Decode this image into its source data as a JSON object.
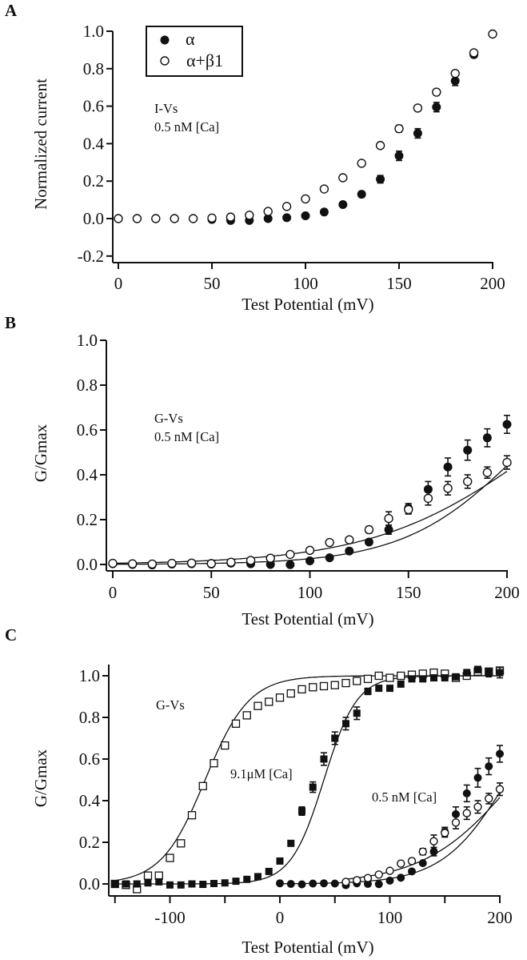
{
  "figure": {
    "panels": [
      "A",
      "B",
      "C"
    ]
  },
  "chart_data": [
    {
      "panel": "A",
      "type": "scatter",
      "title": "",
      "xlabel": "Test Potential (mV)",
      "ylabel": "Normalized current",
      "xlim": [
        -3,
        206
      ],
      "ylim": [
        -0.235,
        1.02
      ],
      "xticks": [
        0,
        50,
        100,
        150,
        200
      ],
      "xtick_labels": [
        "0",
        "50",
        "100",
        "150",
        "200"
      ],
      "yticks": [
        -0.2,
        0.0,
        0.2,
        0.4,
        0.6,
        0.8,
        1.0
      ],
      "ytick_labels": [
        "-0.2",
        "0.0",
        "0.2",
        "0.4",
        "0.6",
        "0.8",
        "1.0"
      ],
      "grid": false,
      "legend": {
        "placement": "top-left",
        "entries": [
          {
            "label": "α",
            "marker": "filled-circle"
          },
          {
            "label": "α+β1",
            "marker": "open-circle"
          }
        ]
      },
      "annotations": [
        "I-Vs",
        "0.5 nM [Ca]"
      ],
      "series": [
        {
          "name": "α",
          "marker": "filled-circle",
          "x": [
            50,
            60,
            70,
            80,
            90,
            100,
            110,
            120,
            130,
            140,
            150,
            160,
            170,
            180,
            190
          ],
          "y": [
            -0.005,
            -0.01,
            -0.01,
            0.0,
            0.005,
            0.015,
            0.035,
            0.075,
            0.13,
            0.21,
            0.335,
            0.455,
            0.595,
            0.735,
            0.875
          ],
          "yerr": [
            0,
            0,
            0,
            0,
            0,
            0,
            0,
            0.01,
            0.015,
            0.02,
            0.025,
            0.025,
            0.025,
            0.025,
            0.015
          ]
        },
        {
          "name": "α+β1",
          "marker": "open-circle",
          "x": [
            0,
            10,
            20,
            30,
            40,
            50,
            60,
            70,
            80,
            90,
            100,
            110,
            120,
            130,
            140,
            150,
            160,
            170,
            180,
            190,
            200
          ],
          "y": [
            0.0,
            0.0,
            0.0,
            0.0,
            0.0,
            0.003,
            0.008,
            0.018,
            0.038,
            0.065,
            0.105,
            0.158,
            0.218,
            0.295,
            0.39,
            0.48,
            0.59,
            0.675,
            0.775,
            0.885,
            0.985
          ],
          "yerr": [
            0,
            0,
            0,
            0,
            0,
            0,
            0,
            0,
            0,
            0,
            0,
            0.01,
            0.01,
            0.012,
            0.015,
            0.018,
            0.015,
            0.015,
            0.012,
            0.01,
            0
          ]
        }
      ]
    },
    {
      "panel": "B",
      "type": "scatter",
      "title": "",
      "xlabel": "Test Potential (mV)",
      "ylabel": "G/Gmax",
      "xlim": [
        -3,
        203
      ],
      "ylim": [
        -0.03,
        1.0
      ],
      "xticks": [
        0,
        50,
        100,
        150,
        200
      ],
      "xtick_labels": [
        "0",
        "50",
        "100",
        "150",
        "200"
      ],
      "yticks": [
        0.0,
        0.2,
        0.4,
        0.6,
        0.8,
        1.0
      ],
      "ytick_labels": [
        "0.0",
        "0.2",
        "0.4",
        "0.6",
        "0.8",
        "1.0"
      ],
      "grid": false,
      "annotations": [
        "G-Vs",
        "0.5 nM [Ca]"
      ],
      "series": [
        {
          "name": "α",
          "marker": "filled-circle",
          "x": [
            0,
            10,
            20,
            30,
            40,
            50,
            60,
            70,
            80,
            90,
            100,
            110,
            120,
            130,
            140,
            150,
            160,
            170,
            180,
            190,
            200
          ],
          "y": [
            0.003,
            0.0,
            -0.002,
            0.002,
            0.003,
            0.002,
            0.006,
            0.003,
            0.0,
            -0.001,
            0.016,
            0.03,
            0.06,
            0.1,
            0.155,
            0.25,
            0.335,
            0.435,
            0.51,
            0.565,
            0.625
          ],
          "yerr": [
            0,
            0,
            0,
            0,
            0,
            0,
            0,
            0,
            0,
            0,
            0,
            0,
            0,
            0.01,
            0.02,
            0.022,
            0.035,
            0.04,
            0.045,
            0.04,
            0.04
          ],
          "fit": {
            "V_half": 207,
            "slope": 29.5,
            "gmax": 1.0
          }
        },
        {
          "name": "α+β1",
          "marker": "open-circle",
          "x": [
            0,
            10,
            20,
            30,
            40,
            50,
            60,
            70,
            80,
            90,
            100,
            110,
            120,
            130,
            140,
            150,
            160,
            170,
            180,
            190,
            200
          ],
          "y": [
            0.005,
            0.003,
            0.002,
            0.005,
            0.006,
            0.004,
            0.01,
            0.018,
            0.028,
            0.045,
            0.063,
            0.098,
            0.11,
            0.155,
            0.205,
            0.245,
            0.295,
            0.34,
            0.37,
            0.41,
            0.455
          ],
          "yerr": [
            0,
            0,
            0,
            0,
            0,
            0,
            0,
            0,
            0,
            0,
            0,
            0.01,
            0.012,
            0.015,
            0.03,
            0.02,
            0.03,
            0.03,
            0.03,
            0.025,
            0.03
          ],
          "fit": {
            "V_half": 214,
            "slope": 41,
            "gmax": 1.0
          }
        }
      ]
    },
    {
      "panel": "C",
      "type": "scatter",
      "title": "",
      "xlabel": "Test Potential (mV)",
      "ylabel": "G/Gmax",
      "xlim": [
        -155,
        203
      ],
      "ylim": [
        -0.06,
        1.1
      ],
      "xticks": [
        -150,
        -100,
        -50,
        0,
        50,
        100,
        150,
        200
      ],
      "xtick_labels": [
        "",
        "-100",
        "",
        "0",
        "",
        "100",
        "",
        "200"
      ],
      "yticks": [
        0.0,
        0.2,
        0.4,
        0.6,
        0.8,
        1.0
      ],
      "ytick_labels": [
        "0.0",
        "0.2",
        "0.4",
        "0.6",
        "0.8",
        "1.0"
      ],
      "grid": false,
      "annotations": [
        "G-Vs",
        "9.1μM [Ca]",
        "0.5 nM [Ca]"
      ],
      "series": [
        {
          "name": "α+β1, 9.1 μM [Ca]",
          "marker": "open-square",
          "x": [
            -150,
            -140,
            -130,
            -120,
            -110,
            -100,
            -90,
            -80,
            -70,
            -60,
            -50,
            -40,
            -30,
            -20,
            -10,
            0,
            10,
            20,
            30,
            40,
            50,
            60,
            70,
            80,
            90,
            100,
            110,
            120,
            130,
            140,
            150,
            160,
            170,
            180,
            190,
            200
          ],
          "y": [
            0.0,
            -0.005,
            -0.025,
            0.04,
            0.04,
            0.125,
            0.195,
            0.33,
            0.47,
            0.58,
            0.665,
            0.77,
            0.81,
            0.855,
            0.875,
            0.895,
            0.915,
            0.935,
            0.945,
            0.95,
            0.955,
            0.965,
            0.975,
            0.985,
            1.0,
            0.99,
            1.0,
            1.005,
            1.01,
            1.015,
            1.01,
            0.99,
            1.0,
            1.02,
            1.02,
            1.025
          ],
          "fit": {
            "V_half": -68,
            "slope": 20,
            "gmax": 1.0
          }
        },
        {
          "name": "α, 9.1 μM [Ca]",
          "marker": "filled-square",
          "x": [
            -150,
            -140,
            -130,
            -120,
            -110,
            -100,
            -90,
            -80,
            -70,
            -60,
            -50,
            -40,
            -30,
            -20,
            -10,
            0,
            10,
            20,
            30,
            40,
            50,
            60,
            70,
            80,
            90,
            100,
            110,
            120,
            130,
            140,
            150,
            160,
            170,
            180,
            190,
            200
          ],
          "y": [
            0.0,
            0.0,
            0.0,
            0.005,
            0.01,
            -0.005,
            -0.005,
            0.0,
            -0.002,
            0.002,
            0.005,
            0.013,
            0.022,
            0.035,
            0.06,
            0.11,
            0.195,
            0.35,
            0.465,
            0.6,
            0.7,
            0.77,
            0.82,
            0.925,
            0.94,
            0.94,
            0.96,
            0.985,
            0.985,
            0.99,
            0.99,
            0.995,
            1.015,
            1.03,
            1.015,
            1.015
          ],
          "yerr": [
            0,
            0,
            0,
            0,
            0,
            0,
            0,
            0,
            0,
            0,
            0,
            0,
            0,
            0,
            0,
            0,
            0,
            0.02,
            0.025,
            0.03,
            0.03,
            0.03,
            0.03,
            0.015,
            0.01,
            0.01,
            0.01,
            0.01,
            0.01,
            0.01,
            0.01,
            0.01,
            0.015,
            0.015,
            0.02,
            0.025
          ],
          "fit": {
            "V_half": 40,
            "slope": 15,
            "gmax": 1.0
          }
        },
        {
          "name": "α, 0.5 nM [Ca]",
          "marker": "filled-circle",
          "x": [
            0,
            10,
            20,
            30,
            40,
            50,
            60,
            70,
            80,
            90,
            100,
            110,
            120,
            130,
            140,
            150,
            160,
            170,
            180,
            190,
            200
          ],
          "y": [
            0.003,
            0.0,
            -0.002,
            0.002,
            0.003,
            0.002,
            -0.006,
            0.003,
            0.0,
            -0.001,
            0.016,
            0.03,
            0.06,
            0.1,
            0.155,
            0.25,
            0.335,
            0.435,
            0.51,
            0.565,
            0.625
          ],
          "yerr": [
            0,
            0,
            0,
            0,
            0,
            0,
            0,
            0,
            0,
            0,
            0,
            0,
            0,
            0,
            0.02,
            0.022,
            0.035,
            0.04,
            0.045,
            0.04,
            0.04
          ],
          "fit": {
            "V_half": 207,
            "slope": 29.5,
            "gmax": 1.0
          }
        },
        {
          "name": "α+β1, 0.5 nM [Ca]",
          "marker": "open-circle",
          "x": [
            60,
            70,
            80,
            90,
            100,
            110,
            120,
            130,
            140,
            150,
            160,
            170,
            180,
            190,
            200
          ],
          "y": [
            0.01,
            0.018,
            0.028,
            0.045,
            0.063,
            0.098,
            0.11,
            0.155,
            0.205,
            0.245,
            0.295,
            0.34,
            0.37,
            0.41,
            0.455
          ],
          "yerr": [
            0,
            0,
            0,
            0,
            0,
            0,
            0.012,
            0.015,
            0.03,
            0.02,
            0.03,
            0.03,
            0.03,
            0.025,
            0.03
          ],
          "fit": {
            "V_half": 214,
            "slope": 41,
            "gmax": 1.0
          }
        }
      ]
    }
  ]
}
